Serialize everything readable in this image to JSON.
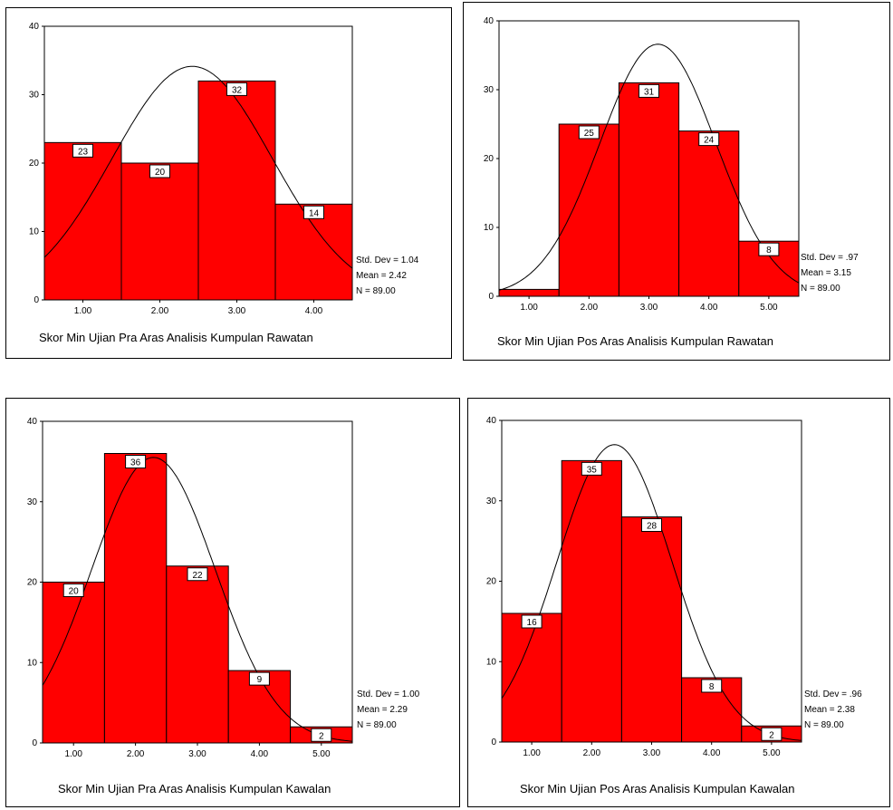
{
  "colors": {
    "bar_fill": "#ff0000",
    "bar_stroke": "#000000",
    "curve": "#000000",
    "label_bg": "#ffffff"
  },
  "chart_data": [
    {
      "type": "bar",
      "xlabel": "Skor Min Ujian Pra Aras Analisis Kumpulan Rawatan",
      "categories": [
        "1.00",
        "2.00",
        "3.00",
        "4.00"
      ],
      "x_tick_labels": [
        "1.00",
        "2.00",
        "3.00",
        "4.00"
      ],
      "values": [
        23,
        20,
        32,
        14
      ],
      "ylim": [
        0,
        40
      ],
      "y_ticks": [
        "0",
        "10",
        "20",
        "30",
        "40"
      ],
      "xlim": [
        0.5,
        4.5
      ],
      "normal_curve": {
        "mean": 2.42,
        "sd": 1.04,
        "n": 89
      },
      "stats": {
        "std_dev": "Std. Dev = 1.04",
        "mean": "Mean = 2.42",
        "n": "N = 89.00"
      }
    },
    {
      "type": "bar",
      "xlabel": "Skor Min Ujian Pos Aras Analisis Kumpulan Rawatan",
      "categories": [
        "1.00",
        "2.00",
        "3.00",
        "4.00",
        "5.00"
      ],
      "x_tick_labels": [
        "1.00",
        "2.00",
        "3.00",
        "4.00",
        "5.00"
      ],
      "values": [
        1,
        25,
        31,
        24,
        8
      ],
      "show_value_labels": [
        false,
        true,
        true,
        true,
        true
      ],
      "ylim": [
        0,
        40
      ],
      "y_ticks": [
        "0",
        "10",
        "20",
        "30",
        "40"
      ],
      "xlim": [
        0.5,
        5.5
      ],
      "normal_curve": {
        "mean": 3.15,
        "sd": 0.97,
        "n": 89
      },
      "stats": {
        "std_dev": "Std. Dev = .97",
        "mean": "Mean = 3.15",
        "n": "N = 89.00"
      }
    },
    {
      "type": "bar",
      "xlabel": "Skor Min Ujian Pra Aras Analisis Kumpulan Kawalan",
      "categories": [
        "1.00",
        "2.00",
        "3.00",
        "4.00",
        "5.00"
      ],
      "x_tick_labels": [
        "1.00",
        "2.00",
        "3.00",
        "4.00",
        "5.00"
      ],
      "values": [
        20,
        36,
        22,
        9,
        2
      ],
      "ylim": [
        0,
        40
      ],
      "y_ticks": [
        "0",
        "10",
        "20",
        "30",
        "40"
      ],
      "xlim": [
        0.5,
        5.5
      ],
      "normal_curve": {
        "mean": 2.29,
        "sd": 1.0,
        "n": 89
      },
      "stats": {
        "std_dev": "Std. Dev = 1.00",
        "mean": "Mean = 2.29",
        "n": "N = 89.00"
      }
    },
    {
      "type": "bar",
      "xlabel": "Skor Min Ujian Pos Aras Analisis Kumpulan Kawalan",
      "categories": [
        "1.00",
        "2.00",
        "3.00",
        "4.00",
        "5.00"
      ],
      "x_tick_labels": [
        "1.00",
        "2.00",
        "3.00",
        "4.00",
        "5.00"
      ],
      "values": [
        16,
        35,
        28,
        8,
        2
      ],
      "ylim": [
        0,
        40
      ],
      "y_ticks": [
        "0",
        "10",
        "20",
        "30",
        "40"
      ],
      "xlim": [
        0.5,
        5.5
      ],
      "normal_curve": {
        "mean": 2.38,
        "sd": 0.96,
        "n": 89
      },
      "stats": {
        "std_dev": "Std. Dev = .96",
        "mean": "Mean = 2.38",
        "n": "N = 89.00"
      }
    }
  ]
}
